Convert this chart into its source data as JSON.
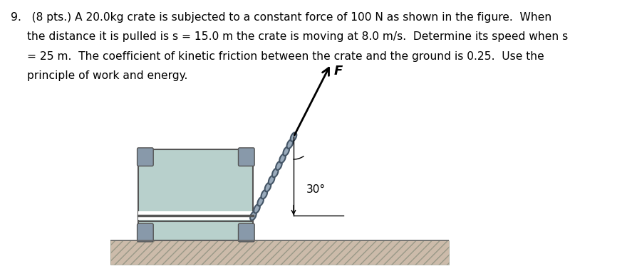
{
  "line1": "9.   (8 pts.) A 20.0kg crate is subjected to a constant force of 100 N as shown in the figure.  When",
  "line2": "the distance it is pulled is s = 15.0 m the crate is moving at 8.0 m/s.  Determine its speed when s",
  "line3": "= 25 m.  The coefficient of kinetic friction between the crate and the ground is 0.25.  Use the",
  "line4": "principle of work and energy.",
  "background_color": "#ffffff",
  "text_color": "#000000",
  "crate_fill": "#b8d0cc",
  "crate_border": "#555555",
  "corner_fill": "#8899aa",
  "ground_fill": "#ccbbaa",
  "force_label": "F",
  "angle_label": "30°",
  "font_size": 11.2
}
